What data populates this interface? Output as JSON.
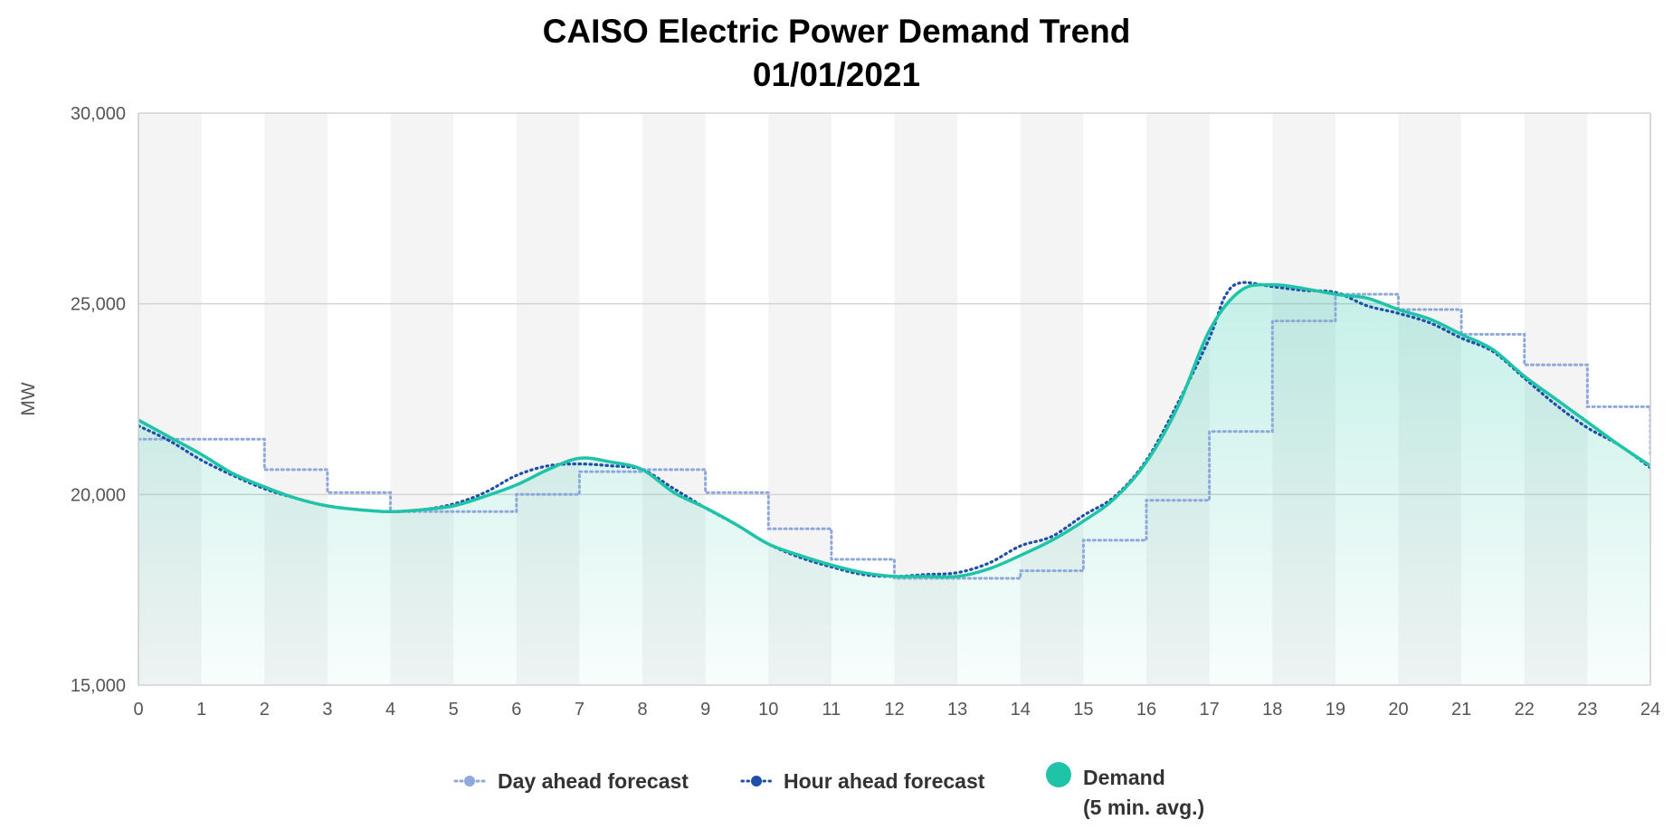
{
  "chart_data": {
    "type": "line",
    "title": "CAISO Electric Power Demand Trend",
    "subtitle": "01/01/2021",
    "ylabel": "MW",
    "xlabel": "",
    "xlim": [
      0,
      24
    ],
    "ylim": [
      15000,
      30000
    ],
    "x_ticks": [
      "0",
      "1",
      "2",
      "3",
      "4",
      "5",
      "6",
      "7",
      "8",
      "9",
      "10",
      "11",
      "12",
      "13",
      "14",
      "15",
      "16",
      "17",
      "18",
      "19",
      "20",
      "21",
      "22",
      "23",
      "24"
    ],
    "y_ticks": [
      {
        "value": 15000,
        "label": "15,000"
      },
      {
        "value": 20000,
        "label": "20,000"
      },
      {
        "value": 25000,
        "label": "25,000"
      },
      {
        "value": 30000,
        "label": "30,000"
      }
    ],
    "grid": "horizontal",
    "alternating_hour_bands": true,
    "legend_position": "bottom",
    "colors": {
      "day_ahead": "#8fa8dc",
      "hour_ahead": "#1f4fa8",
      "demand": "#1fc4a8",
      "band": "#f4f4f4",
      "grid": "#d4d4d4"
    },
    "series": [
      {
        "name": "Day ahead forecast",
        "style": "dotted-step",
        "x": [
          0,
          1,
          2,
          3,
          4,
          5,
          6,
          7,
          8,
          9,
          10,
          11,
          12,
          13,
          14,
          15,
          16,
          17,
          18,
          19,
          20,
          21,
          22,
          23,
          24
        ],
        "values": [
          21450,
          21450,
          20650,
          20050,
          19550,
          19550,
          20000,
          20600,
          20650,
          20050,
          19100,
          18300,
          17800,
          17800,
          18000,
          18800,
          19850,
          21650,
          24550,
          25250,
          24850,
          24200,
          23400,
          22300,
          21050
        ]
      },
      {
        "name": "Hour ahead forecast",
        "style": "dotted",
        "x": [
          0,
          0.5,
          1,
          1.5,
          2,
          2.5,
          3,
          3.5,
          4,
          4.5,
          5,
          5.5,
          6,
          6.5,
          7,
          7.5,
          8,
          8.5,
          9,
          9.5,
          10,
          10.5,
          11,
          11.5,
          12,
          12.5,
          13,
          13.5,
          14,
          14.5,
          15,
          15.5,
          16,
          16.5,
          17,
          17.25,
          17.5,
          18,
          18.5,
          19,
          19.5,
          20,
          20.5,
          21,
          21.5,
          22,
          22.5,
          23,
          23.5,
          24
        ],
        "values": [
          21800,
          21400,
          20900,
          20500,
          20150,
          19900,
          19700,
          19600,
          19550,
          19600,
          19750,
          20050,
          20500,
          20750,
          20800,
          20750,
          20650,
          20150,
          19650,
          19200,
          18700,
          18350,
          18100,
          17900,
          17850,
          17900,
          17950,
          18200,
          18650,
          18900,
          19450,
          19950,
          20900,
          22400,
          24100,
          25200,
          25550,
          25450,
          25350,
          25300,
          24950,
          24750,
          24500,
          24100,
          23750,
          23050,
          22350,
          21750,
          21300,
          20700
        ]
      },
      {
        "name": "Demand",
        "name_sub": "(5 min. avg.)",
        "style": "solid-area",
        "x": [
          0,
          0.5,
          1,
          1.5,
          2,
          2.5,
          3,
          3.5,
          4,
          4.5,
          5,
          5.5,
          6,
          6.5,
          7,
          7.5,
          8,
          8.5,
          9,
          9.5,
          10,
          10.5,
          11,
          11.5,
          12,
          12.5,
          13,
          13.5,
          14,
          14.5,
          15,
          15.5,
          16,
          16.5,
          17,
          17.5,
          18,
          18.5,
          19,
          19.5,
          20,
          20.5,
          21,
          21.5,
          22,
          22.5,
          23,
          23.5,
          24
        ],
        "values": [
          21950,
          21500,
          21050,
          20550,
          20200,
          19900,
          19700,
          19600,
          19550,
          19600,
          19700,
          19950,
          20250,
          20650,
          20950,
          20850,
          20650,
          20050,
          19650,
          19200,
          18700,
          18400,
          18150,
          17950,
          17850,
          17850,
          17850,
          18050,
          18400,
          18800,
          19300,
          19900,
          20850,
          22300,
          24300,
          25350,
          25500,
          25400,
          25250,
          25150,
          24850,
          24600,
          24200,
          23800,
          23100,
          22500,
          21900,
          21300,
          20750
        ]
      }
    ]
  }
}
